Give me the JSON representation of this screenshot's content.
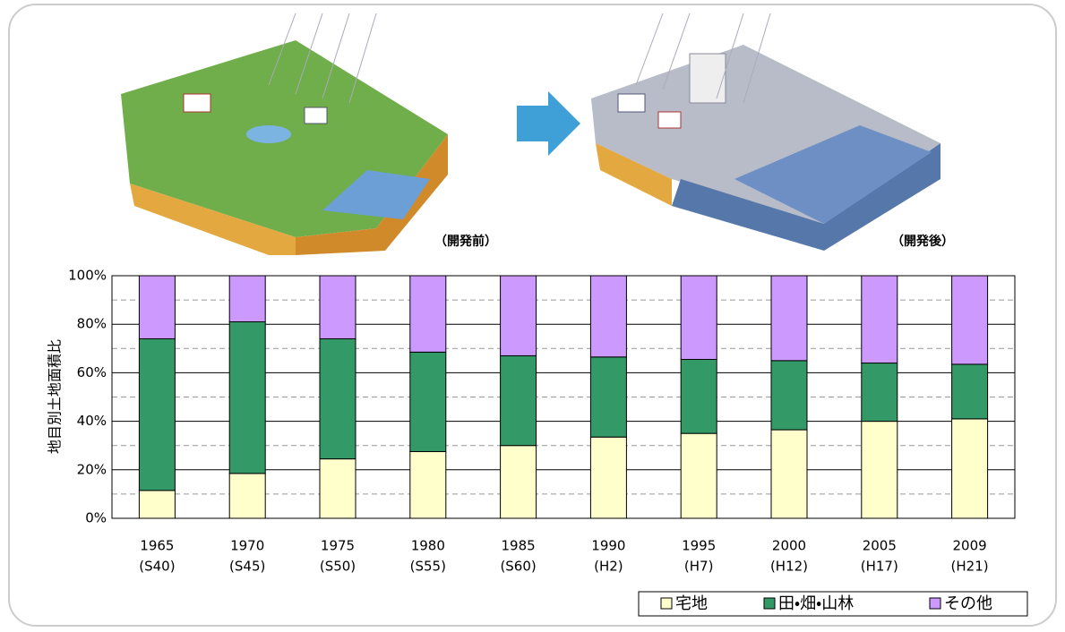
{
  "chart_data": {
    "type": "stacked_bar",
    "before_label": "（開発前）",
    "after_label": "（開発後）",
    "y_label": "地目別土地面積比",
    "categories": [
      "1965",
      "1970",
      "1975",
      "1980",
      "1985",
      "1990",
      "1995",
      "2000",
      "2005",
      "2009"
    ],
    "era_labels": [
      "(S40)",
      "(S45)",
      "(S50)",
      "(S55)",
      "(S60)",
      "(H2)",
      "(H7)",
      "(H12)",
      "(H17)",
      "(H21)"
    ],
    "series": [
      {
        "name": "宅地",
        "color": "#ffffcc",
        "values": [
          11.5,
          18.5,
          24.5,
          27.5,
          30,
          33.5,
          35,
          36.5,
          40,
          41
        ]
      },
      {
        "name": "田・畑・山林",
        "color": "#339966",
        "values": [
          62.5,
          62.5,
          49.5,
          41,
          37,
          33,
          30.5,
          28.5,
          24,
          22.5
        ]
      },
      {
        "name": "その他",
        "color": "#cc99ff",
        "values": [
          26,
          19,
          26,
          31.5,
          33,
          33.5,
          34.5,
          35,
          36,
          36.5
        ]
      }
    ],
    "ylim": [
      0,
      100
    ],
    "yticks": [
      {
        "value": 0,
        "label": "0%"
      },
      {
        "value": 20,
        "label": "20%"
      },
      {
        "value": 40,
        "label": "40%"
      },
      {
        "value": 60,
        "label": "60%"
      },
      {
        "value": 80,
        "label": "80%"
      },
      {
        "value": 100,
        "label": "100%"
      }
    ],
    "minor_yticks": [
      10,
      30,
      50,
      70,
      90
    ],
    "grid": true,
    "legend": "bottom-right"
  }
}
